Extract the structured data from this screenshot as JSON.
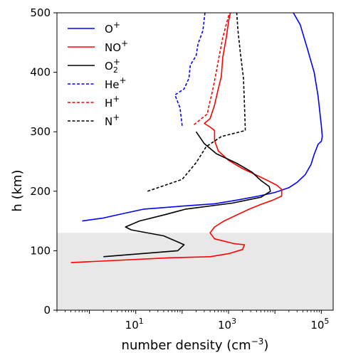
{
  "chart_data": {
    "type": "line",
    "xlabel": "number density (cm",
    "xlabel_exp": "−3",
    "xlabel_close": ")",
    "ylabel": "h (km)",
    "x_scale": "log",
    "xlim": [
      0.2,
      180000
    ],
    "ylim": [
      0,
      500
    ],
    "x_ticks": [
      {
        "value": 10,
        "base": "10",
        "exp": "1"
      },
      {
        "value": 1000,
        "base": "10",
        "exp": "3"
      },
      {
        "value": 100000,
        "base": "10",
        "exp": "5"
      }
    ],
    "y_ticks": [
      0,
      100,
      200,
      300,
      400,
      500
    ],
    "shaded_region": {
      "y_from": 0,
      "y_to": 130,
      "color": "#e8e8e8"
    },
    "legend_position": "upper-left",
    "series": [
      {
        "name": "O",
        "charge": "+",
        "color": "#0000ff",
        "style": "solid",
        "points": [
          [
            0.7,
            150
          ],
          [
            2,
            155
          ],
          [
            5,
            162
          ],
          [
            15,
            170
          ],
          [
            100,
            175
          ],
          [
            500,
            179
          ],
          [
            1500,
            185
          ],
          [
            4500,
            192
          ],
          [
            10000,
            198
          ],
          [
            20000,
            206
          ],
          [
            30000,
            215
          ],
          [
            45000,
            228
          ],
          [
            60000,
            245
          ],
          [
            70000,
            262
          ],
          [
            85000,
            279
          ],
          [
            100000,
            284
          ],
          [
            105000,
            292
          ],
          [
            100000,
            310
          ],
          [
            85000,
            360
          ],
          [
            70000,
            400
          ],
          [
            50000,
            440
          ],
          [
            35000,
            480
          ],
          [
            25000,
            500
          ]
        ]
      },
      {
        "name": "NO",
        "charge": "+",
        "color": "#ff0000",
        "style": "solid",
        "points": [
          [
            0.4,
            80
          ],
          [
            50,
            88
          ],
          [
            400,
            90
          ],
          [
            1000,
            95
          ],
          [
            2000,
            102
          ],
          [
            2200,
            110
          ],
          [
            1300,
            112
          ],
          [
            500,
            120
          ],
          [
            400,
            130
          ],
          [
            500,
            140
          ],
          [
            800,
            150
          ],
          [
            1500,
            160
          ],
          [
            2800,
            170
          ],
          [
            5000,
            178
          ],
          [
            9000,
            185
          ],
          [
            14000,
            192
          ],
          [
            14000,
            203
          ],
          [
            11000,
            210
          ],
          [
            7000,
            218
          ],
          [
            4000,
            227
          ],
          [
            2000,
            238
          ],
          [
            1000,
            252
          ],
          [
            600,
            268
          ],
          [
            500,
            285
          ],
          [
            500,
            302
          ],
          [
            500,
            302
          ],
          [
            400,
            308
          ],
          [
            300,
            314
          ],
          [
            400,
            322
          ],
          [
            500,
            345
          ],
          [
            600,
            372
          ],
          [
            700,
            393
          ],
          [
            750,
            425
          ],
          [
            900,
            460
          ],
          [
            1000,
            485
          ],
          [
            1100,
            500
          ]
        ]
      },
      {
        "name": "O",
        "sub": "2",
        "charge": "+",
        "color": "#000000",
        "style": "solid",
        "points": [
          [
            2,
            90
          ],
          [
            80,
            100
          ],
          [
            110,
            110
          ],
          [
            40,
            125
          ],
          [
            8,
            135
          ],
          [
            6,
            140
          ],
          [
            12,
            150
          ],
          [
            40,
            160
          ],
          [
            120,
            170
          ],
          [
            1200,
            180
          ],
          [
            5000,
            190
          ],
          [
            8000,
            200
          ],
          [
            7500,
            208
          ],
          [
            5000,
            218
          ],
          [
            3200,
            232
          ],
          [
            1500,
            247
          ],
          [
            550,
            263
          ],
          [
            300,
            280
          ],
          [
            200,
            300
          ]
        ]
      },
      {
        "name": "He",
        "charge": "+",
        "color": "#0000ff",
        "style": "dashed",
        "points": [
          [
            100,
            310
          ],
          [
            90,
            340
          ],
          [
            70,
            362
          ],
          [
            110,
            372
          ],
          [
            140,
            390
          ],
          [
            150,
            412
          ],
          [
            200,
            428
          ],
          [
            220,
            448
          ],
          [
            280,
            470
          ],
          [
            310,
            500
          ]
        ]
      },
      {
        "name": "H",
        "charge": "+",
        "color": "#ff0000",
        "style": "dashed",
        "points": [
          [
            180,
            312
          ],
          [
            350,
            330
          ],
          [
            380,
            345
          ],
          [
            450,
            368
          ],
          [
            530,
            396
          ],
          [
            620,
            425
          ],
          [
            750,
            458
          ],
          [
            900,
            482
          ],
          [
            1050,
            500
          ]
        ]
      },
      {
        "name": "N",
        "charge": "+",
        "color": "#000000",
        "style": "dashed",
        "points": [
          [
            18,
            200
          ],
          [
            100,
            220
          ],
          [
            200,
            248
          ],
          [
            330,
            275
          ],
          [
            700,
            292
          ],
          [
            2300,
            302
          ],
          [
            2200,
            346
          ],
          [
            2100,
            390
          ],
          [
            1800,
            432
          ],
          [
            1600,
            470
          ],
          [
            1500,
            500
          ]
        ]
      }
    ]
  }
}
